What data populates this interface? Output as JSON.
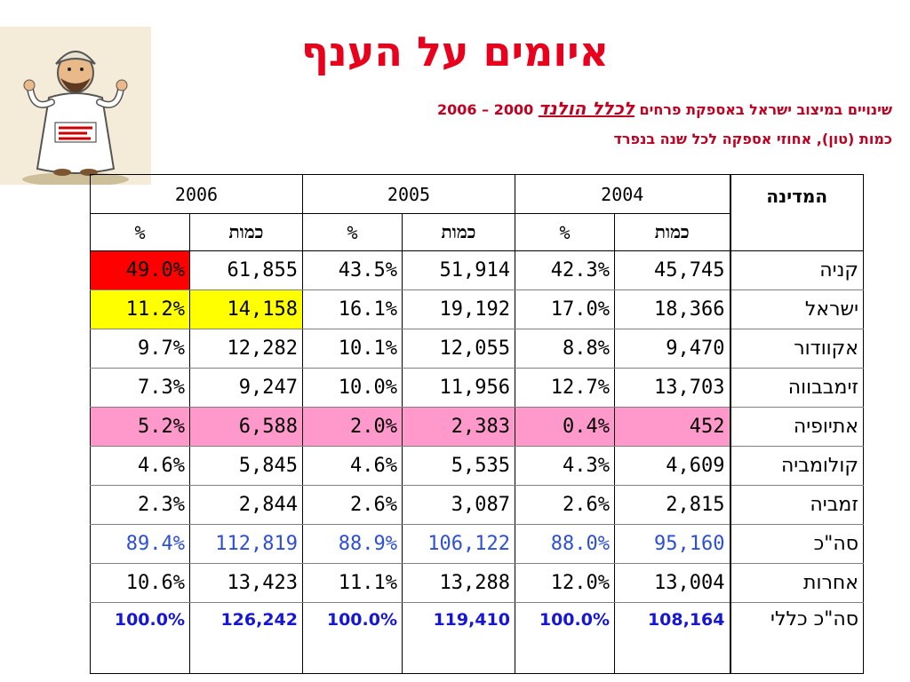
{
  "title": "איומים על הענף",
  "subtitle_parts": {
    "prefix": "שינויים במיצוב ישראל באספקת פרחים ",
    "emphasis": "לכלל הולנד",
    "suffix": " 2000 – 2006"
  },
  "subtitle_line2": "כמות (טון), אחוזי אספקה לכל שנה בנפרד",
  "table": {
    "country_header": "המדינה",
    "years": [
      "2004",
      "2005",
      "2006"
    ],
    "qty_label": "כמות",
    "pct_label": "%",
    "rows": [
      {
        "country": "קניה",
        "q2004": "45,745",
        "p2004": "42.3%",
        "q2005": "51,914",
        "p2005": "43.5%",
        "q2006": "61,855",
        "p2006": "49.0%"
      },
      {
        "country": "ישראל",
        "q2004": "18,366",
        "p2004": "17.0%",
        "q2005": "19,192",
        "p2005": "16.1%",
        "q2006": "14,158",
        "p2006": "11.2%"
      },
      {
        "country": "אקוודור",
        "q2004": "9,470",
        "p2004": "8.8%",
        "q2005": "12,055",
        "p2005": "10.1%",
        "q2006": "12,282",
        "p2006": "9.7%"
      },
      {
        "country": "זימבבווה",
        "q2004": "13,703",
        "p2004": "12.7%",
        "q2005": "11,956",
        "p2005": "10.0%",
        "q2006": "9,247",
        "p2006": "7.3%"
      },
      {
        "country": "אתיופיה",
        "q2004": "452",
        "p2004": "0.4%",
        "q2005": "2,383",
        "p2005": "2.0%",
        "q2006": "6,588",
        "p2006": "5.2%"
      },
      {
        "country": "קולומביה",
        "q2004": "4,609",
        "p2004": "4.3%",
        "q2005": "5,535",
        "p2005": "4.6%",
        "q2006": "5,845",
        "p2006": "4.6%"
      },
      {
        "country": "זמביה",
        "q2004": "2,815",
        "p2004": "2.6%",
        "q2005": "3,087",
        "p2005": "2.6%",
        "q2006": "2,844",
        "p2006": "2.3%"
      },
      {
        "country": "סה\"כ",
        "q2004": "95,160",
        "p2004": "88.0%",
        "q2005": "106,122",
        "p2005": "88.9%",
        "q2006": "112,819",
        "p2006": "89.4%"
      },
      {
        "country": "אחרות",
        "q2004": "13,004",
        "p2004": "12.0%",
        "q2005": "13,288",
        "p2005": "11.1%",
        "q2006": "13,423",
        "p2006": "10.6%"
      },
      {
        "country": "סה\"כ כללי",
        "q2004": "108,164",
        "p2004": "100.0%",
        "q2005": "119,410",
        "p2005": "100.0%",
        "q2006": "126,242",
        "p2006": "100.0%"
      }
    ]
  },
  "colors": {
    "title": "#e8001c",
    "subtitle": "#c00020",
    "highlight_red": "#ff0000",
    "highlight_yellow": "#ffff00",
    "highlight_pink": "#ff99cc",
    "total_blue": "#2d4fd6",
    "grand_total_blue": "#1616d8"
  },
  "illustration": "cartoon-man-holding-sign-icon"
}
